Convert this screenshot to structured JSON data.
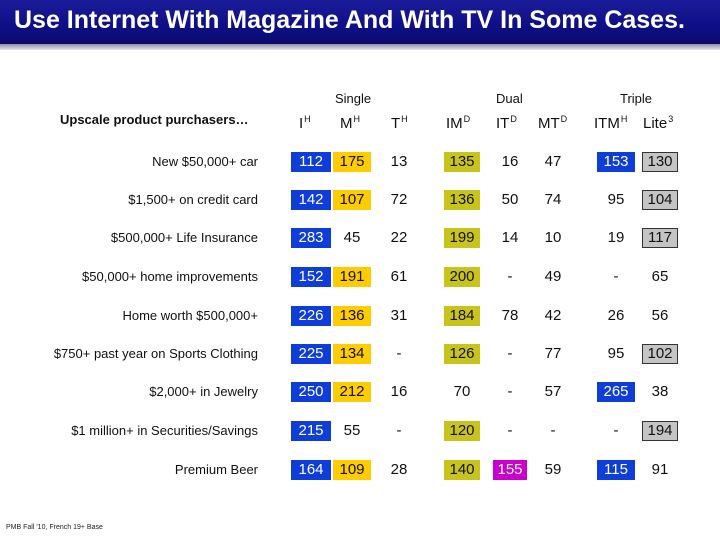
{
  "title": "Use Internet With Magazine And With TV In Some Cases.",
  "row_header": "Upscale product purchasers…",
  "groups": [
    "Single",
    "Dual",
    "Triple"
  ],
  "columns": [
    {
      "base": "I",
      "sup": "H"
    },
    {
      "base": "M",
      "sup": "H"
    },
    {
      "base": "T",
      "sup": "H"
    },
    {
      "base": "IM",
      "sup": "D"
    },
    {
      "base": "IT",
      "sup": "D"
    },
    {
      "base": "MT",
      "sup": "D"
    },
    {
      "base": "ITM",
      "sup": "H"
    },
    {
      "base": "Lite",
      "sup": "3"
    }
  ],
  "rows": [
    {
      "label": "New $50,000+ car",
      "cells": [
        {
          "v": "112",
          "c": "blue"
        },
        {
          "v": "175",
          "c": "yellow"
        },
        {
          "v": "13",
          "c": ""
        },
        {
          "v": "135",
          "c": "olive"
        },
        {
          "v": "16",
          "c": ""
        },
        {
          "v": "47",
          "c": ""
        },
        {
          "v": "153",
          "c": "blue"
        },
        {
          "v": "130",
          "c": "grey"
        }
      ]
    },
    {
      "label": "$1,500+ on credit card",
      "cells": [
        {
          "v": "142",
          "c": "blue"
        },
        {
          "v": "107",
          "c": "yellow"
        },
        {
          "v": "72",
          "c": ""
        },
        {
          "v": "136",
          "c": "olive"
        },
        {
          "v": "50",
          "c": ""
        },
        {
          "v": "74",
          "c": ""
        },
        {
          "v": "95",
          "c": ""
        },
        {
          "v": "104",
          "c": "grey"
        }
      ]
    },
    {
      "label": "$500,000+  Life Insurance",
      "cells": [
        {
          "v": "283",
          "c": "blue"
        },
        {
          "v": "45",
          "c": ""
        },
        {
          "v": "22",
          "c": ""
        },
        {
          "v": "199",
          "c": "olive"
        },
        {
          "v": "14",
          "c": ""
        },
        {
          "v": "10",
          "c": ""
        },
        {
          "v": "19",
          "c": ""
        },
        {
          "v": "117",
          "c": "grey"
        }
      ]
    },
    {
      "label": "$50,000+ home improvements",
      "cells": [
        {
          "v": "152",
          "c": "blue"
        },
        {
          "v": "191",
          "c": "yellow"
        },
        {
          "v": "61",
          "c": ""
        },
        {
          "v": "200",
          "c": "olive"
        },
        {
          "v": "-",
          "c": ""
        },
        {
          "v": "49",
          "c": ""
        },
        {
          "v": "-",
          "c": ""
        },
        {
          "v": "65",
          "c": ""
        }
      ]
    },
    {
      "label": "Home worth $500,000+",
      "cells": [
        {
          "v": "226",
          "c": "blue"
        },
        {
          "v": "136",
          "c": "yellow"
        },
        {
          "v": "31",
          "c": ""
        },
        {
          "v": "184",
          "c": "olive"
        },
        {
          "v": "78",
          "c": ""
        },
        {
          "v": "42",
          "c": ""
        },
        {
          "v": "26",
          "c": ""
        },
        {
          "v": "56",
          "c": ""
        }
      ]
    },
    {
      "label": "$750+ past year on Sports Clothing",
      "cells": [
        {
          "v": "225",
          "c": "blue"
        },
        {
          "v": "134",
          "c": "yellow"
        },
        {
          "v": "-",
          "c": ""
        },
        {
          "v": "126",
          "c": "olive"
        },
        {
          "v": "-",
          "c": ""
        },
        {
          "v": "77",
          "c": ""
        },
        {
          "v": "95",
          "c": ""
        },
        {
          "v": "102",
          "c": "grey"
        }
      ]
    },
    {
      "label": "$2,000+ in Jewelry",
      "cells": [
        {
          "v": "250",
          "c": "blue"
        },
        {
          "v": "212",
          "c": "yellow"
        },
        {
          "v": "16",
          "c": ""
        },
        {
          "v": "70",
          "c": ""
        },
        {
          "v": "-",
          "c": ""
        },
        {
          "v": "57",
          "c": ""
        },
        {
          "v": "265",
          "c": "blue"
        },
        {
          "v": "38",
          "c": ""
        }
      ]
    },
    {
      "label": "$1 million+ in Securities/Savings",
      "cells": [
        {
          "v": "215",
          "c": "blue"
        },
        {
          "v": "55",
          "c": ""
        },
        {
          "v": "-",
          "c": ""
        },
        {
          "v": "120",
          "c": "olive"
        },
        {
          "v": "-",
          "c": ""
        },
        {
          "v": "-",
          "c": ""
        },
        {
          "v": "-",
          "c": ""
        },
        {
          "v": "194",
          "c": "grey"
        }
      ]
    },
    {
      "label": "Premium Beer",
      "cells": [
        {
          "v": "164",
          "c": "blue"
        },
        {
          "v": "109",
          "c": "yellow"
        },
        {
          "v": "28",
          "c": ""
        },
        {
          "v": "140",
          "c": "olive"
        },
        {
          "v": "155",
          "c": "magenta"
        },
        {
          "v": "59",
          "c": ""
        },
        {
          "v": "115",
          "c": "blue"
        },
        {
          "v": "91",
          "c": ""
        }
      ]
    }
  ],
  "footnote": "PMB Fall '10, French 19+ Base",
  "colors": {
    "title_bar": "#0e0f86",
    "blue": "#0f3dd8",
    "yellow": "#ffcc00",
    "olive": "#c9c41c",
    "magenta": "#cc00cc",
    "grey": "#c4c4c4"
  }
}
